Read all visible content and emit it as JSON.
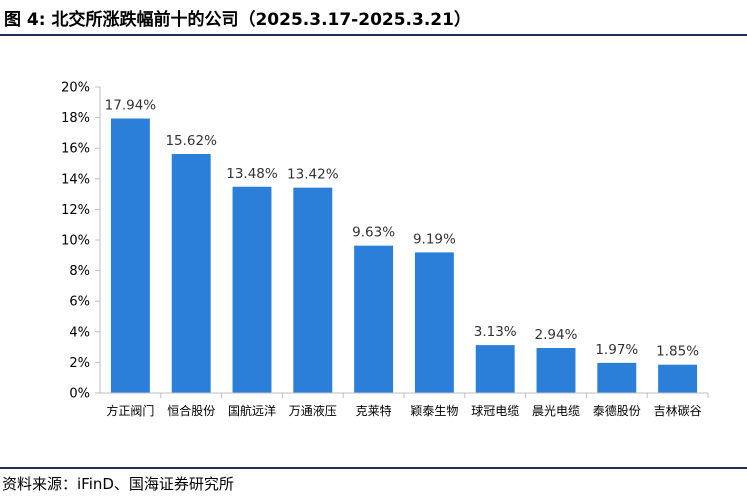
{
  "header": {
    "title": "图 4:  北交所涨跌幅前十的公司（2025.3.17-2025.3.21）"
  },
  "footer": {
    "source": "资料来源：iFinD、国海证券研究所"
  },
  "colors": {
    "bar": "#2b7fd8",
    "axis": "#bfbfbf",
    "rule": "#1f2f4f"
  },
  "chart_data": {
    "type": "bar",
    "categories": [
      "方正阀门",
      "恒合股份",
      "国航远洋",
      "万通液压",
      "克莱特",
      "颖泰生物",
      "球冠电缆",
      "晨光电缆",
      "泰德股份",
      "吉林碳谷"
    ],
    "values": [
      17.94,
      15.62,
      13.48,
      13.42,
      9.63,
      9.19,
      3.13,
      2.94,
      1.97,
      1.85
    ],
    "value_labels": [
      "17.94%",
      "15.62%",
      "13.48%",
      "13.42%",
      "9.63%",
      "9.19%",
      "3.13%",
      "2.94%",
      "1.97%",
      "1.85%"
    ],
    "y_ticks": [
      "0%",
      "2%",
      "4%",
      "6%",
      "8%",
      "10%",
      "12%",
      "14%",
      "16%",
      "18%",
      "20%"
    ],
    "ylim": [
      0,
      20
    ],
    "grid": false,
    "legend": "none"
  }
}
